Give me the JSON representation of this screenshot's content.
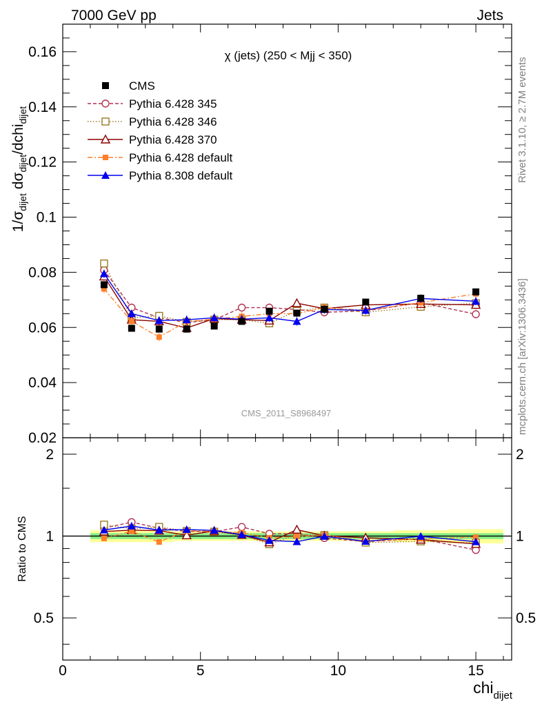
{
  "header": {
    "left": "7000 GeV pp",
    "right": "Jets"
  },
  "side": {
    "rivet": "Rivet 3.1.10, ≥ 2.7M events",
    "mcplots": "mcplots.cern.ch [arXiv:1306.3436]"
  },
  "chart_data": {
    "type": "line",
    "title": "χ (jets) (250 < Mjj <  350)",
    "watermark": "CMS_2011_S8968497",
    "xlabel": {
      "main": "chi",
      "sub": "dijet"
    },
    "ylabel": "1/σ_dijet dσ_dijet/dchi_dijet",
    "ratio_ylabel": "Ratio to CMS",
    "xlim": [
      0,
      16.3
    ],
    "ylim": [
      0.02,
      0.17
    ],
    "ratio_ylim": [
      0.35,
      2.3
    ],
    "x_ticks": [
      0,
      5,
      10,
      15
    ],
    "y_ticks": [
      0.02,
      0.04,
      0.06,
      0.08,
      0.1,
      0.12,
      0.14,
      0.16
    ],
    "y_tick_labels": [
      "0.02",
      "0.04",
      "0.06",
      "0.08",
      "0.1",
      "0.12",
      "0.14",
      "0.16"
    ],
    "ratio_ticks": [
      0.5,
      1,
      2
    ],
    "ratio_tick_labels": [
      "0.5",
      "1",
      "2"
    ],
    "x": [
      1.5,
      2.5,
      3.5,
      4.5,
      5.5,
      6.5,
      7.5,
      8.5,
      9.5,
      11,
      13,
      15
    ],
    "x_edges": [
      1,
      2,
      3,
      4,
      5,
      6,
      7,
      8,
      9,
      10,
      12,
      14,
      16
    ],
    "data_band": {
      "green": [
        0.025,
        0.025,
        0.025,
        0.025,
        0.025,
        0.025,
        0.025,
        0.025,
        0.025,
        0.025,
        0.025,
        0.025
      ],
      "yellow": [
        0.05,
        0.05,
        0.05,
        0.04,
        0.04,
        0.04,
        0.04,
        0.04,
        0.04,
        0.04,
        0.05,
        0.06
      ]
    },
    "series": [
      {
        "name": "CMS",
        "color": "#000000",
        "marker": "square-filled",
        "dash": "none",
        "values": [
          0.0755,
          0.0597,
          0.0594,
          0.0594,
          0.0605,
          0.0622,
          0.0659,
          0.0652,
          0.0666,
          0.0692,
          0.0706,
          0.0729
        ]
      },
      {
        "name": "Pythia 6.428 345",
        "color": "#b03050",
        "marker": "circle-open",
        "dash": "5,3",
        "values": [
          0.0808,
          0.0672,
          0.0635,
          0.0618,
          0.0628,
          0.0672,
          0.0672,
          0.0665,
          0.0655,
          0.066,
          0.069,
          0.0648
        ]
      },
      {
        "name": "Pythia 6.428 346",
        "color": "#9a7b26",
        "marker": "square-open",
        "dash": "1.5,2.5",
        "values": [
          0.0832,
          0.0635,
          0.0642,
          0.062,
          0.0628,
          0.0628,
          0.0615,
          0.066,
          0.0672,
          0.0655,
          0.0675,
          0.0688
        ]
      },
      {
        "name": "Pythia 6.428 370",
        "color": "#8b0000",
        "marker": "triangle-open",
        "dash": "none",
        "values": [
          0.0785,
          0.0628,
          0.0622,
          0.0598,
          0.0632,
          0.0628,
          0.0625,
          0.0688,
          0.0668,
          0.0682,
          0.0685,
          0.0682
        ]
      },
      {
        "name": "Pythia 6.428 default",
        "color": "#ff7f2a",
        "marker": "square-filled-small",
        "dash": "7,3,2,3",
        "values": [
          0.074,
          0.0622,
          0.0565,
          0.0622,
          0.063,
          0.064,
          0.065,
          0.065,
          0.0672,
          0.0662,
          0.069,
          0.0722
        ]
      },
      {
        "name": "Pythia 8.308 default",
        "color": "#0000ee",
        "marker": "triangle-filled",
        "dash": "none",
        "values": [
          0.0795,
          0.065,
          0.0625,
          0.0628,
          0.0635,
          0.063,
          0.0635,
          0.0622,
          0.0665,
          0.0662,
          0.0705,
          0.0695
        ]
      }
    ]
  }
}
